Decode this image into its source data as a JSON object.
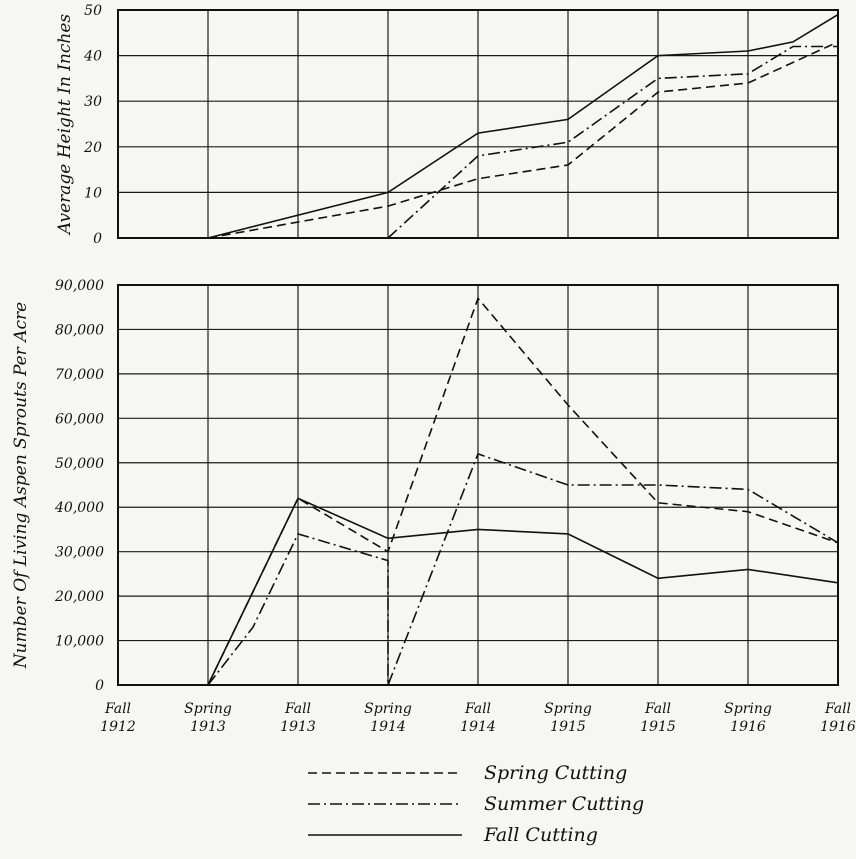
{
  "chart_data": [
    {
      "type": "line",
      "ylabel": "Average Height In Inches",
      "ylim": [
        0,
        50
      ],
      "yticks": [
        "0",
        "10",
        "20",
        "30",
        "40",
        "50"
      ],
      "x": [
        "Fall 1912",
        "Spring 1913",
        "Fall 1913",
        "Spring 1914",
        "Fall 1914",
        "Spring 1915",
        "Fall 1915",
        "Spring 1916",
        "Fall 1916"
      ],
      "series": [
        {
          "name": "Spring Cutting",
          "dash": "dashed",
          "points": [
            [
              1,
              0
            ],
            [
              3,
              7
            ],
            [
              4,
              13
            ],
            [
              5,
              16
            ],
            [
              6,
              32
            ],
            [
              7,
              34
            ],
            [
              8,
              43
            ]
          ]
        },
        {
          "name": "Summer Cutting",
          "dash": "dashdot",
          "points": [
            [
              3,
              0
            ],
            [
              4,
              18
            ],
            [
              5,
              21
            ],
            [
              6,
              35
            ],
            [
              7,
              36
            ],
            [
              7.5,
              42
            ],
            [
              8,
              42
            ]
          ]
        },
        {
          "name": "Fall Cutting",
          "dash": "solid",
          "points": [
            [
              1,
              0
            ],
            [
              3,
              10
            ],
            [
              4,
              23
            ],
            [
              5,
              26
            ],
            [
              6,
              40
            ],
            [
              7,
              41
            ],
            [
              7.5,
              43
            ],
            [
              8,
              49
            ]
          ]
        }
      ]
    },
    {
      "type": "line",
      "ylabel": "Number Of Living Aspen Sprouts Per Acre",
      "ylim": [
        0,
        90000
      ],
      "yticks": [
        "0",
        "10,000",
        "20,000",
        "30,000",
        "40,000",
        "50,000",
        "60,000",
        "70,000",
        "80,000",
        "90,000"
      ],
      "x": [
        "Fall 1912",
        "Spring 1913",
        "Fall 1913",
        "Spring 1914",
        "Fall 1914",
        "Spring 1915",
        "Fall 1915",
        "Spring 1916",
        "Fall 1916"
      ],
      "xticks": [
        {
          "season": "Fall",
          "year": "1912"
        },
        {
          "season": "Spring",
          "year": "1913"
        },
        {
          "season": "Fall",
          "year": "1913"
        },
        {
          "season": "Spring",
          "year": "1914"
        },
        {
          "season": "Fall",
          "year": "1914"
        },
        {
          "season": "Spring",
          "year": "1915"
        },
        {
          "season": "Fall",
          "year": "1915"
        },
        {
          "season": "Spring",
          "year": "1916"
        },
        {
          "season": "Fall",
          "year": "1916"
        }
      ],
      "series": [
        {
          "name": "Spring Cutting",
          "dash": "dashed",
          "points": [
            [
              1,
              0
            ],
            [
              2,
              42000
            ],
            [
              3,
              30000
            ],
            [
              4,
              87000
            ],
            [
              5,
              63000
            ],
            [
              6,
              41000
            ],
            [
              7,
              39000
            ],
            [
              8,
              32000
            ]
          ]
        },
        {
          "name": "Summer Cutting",
          "dash": "dashdot",
          "points": [
            [
              1,
              0
            ],
            [
              1.5,
              13000
            ],
            [
              2,
              34000
            ],
            [
              3,
              28000
            ],
            [
              3,
              0
            ],
            [
              4,
              52000
            ],
            [
              5,
              45000
            ],
            [
              6,
              45000
            ],
            [
              7,
              44000
            ],
            [
              8,
              32000
            ]
          ]
        },
        {
          "name": "Fall Cutting",
          "dash": "solid",
          "points": [
            [
              1,
              0
            ],
            [
              2,
              42000
            ],
            [
              3,
              33000
            ],
            [
              4,
              35000
            ],
            [
              5,
              34000
            ],
            [
              6,
              24000
            ],
            [
              7,
              26000
            ],
            [
              8,
              23000
            ]
          ]
        }
      ]
    }
  ],
  "legend": [
    {
      "label": "Spring Cutting",
      "dash": "dashed"
    },
    {
      "label": "Summer Cutting",
      "dash": "dashdot"
    },
    {
      "label": "Fall Cutting",
      "dash": "solid"
    }
  ]
}
